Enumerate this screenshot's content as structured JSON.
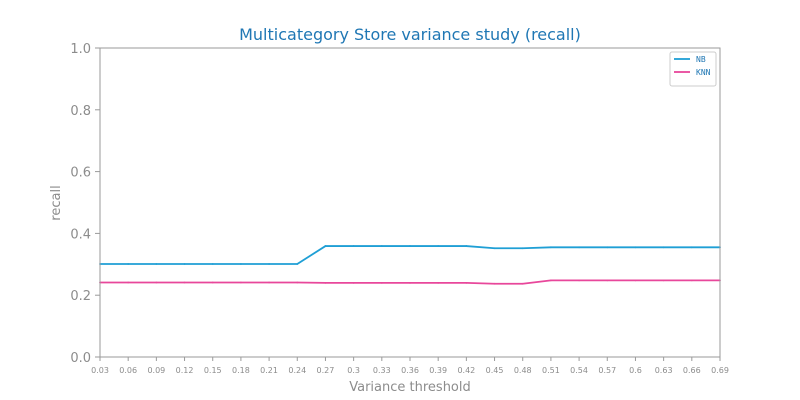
{
  "chart_data": {
    "type": "line",
    "title": "Multicategory Store variance study (recall)",
    "xlabel": "Variance threshold",
    "ylabel": "recall",
    "ylim": [
      0,
      1
    ],
    "y_ticks": [
      "0.0",
      "0.2",
      "0.4",
      "0.6",
      "0.8",
      "1.0"
    ],
    "categories": [
      "0.03",
      "0.06",
      "0.09",
      "0.12",
      "0.15",
      "0.18",
      "0.21",
      "0.24",
      "0.27",
      "0.3",
      "0.33",
      "0.36",
      "0.39",
      "0.42",
      "0.45",
      "0.48",
      "0.51",
      "0.54",
      "0.57",
      "0.6",
      "0.63",
      "0.66",
      "0.69"
    ],
    "legend_position": "top-right",
    "grid": false,
    "series": [
      {
        "name": "NB",
        "color": "#1f9fd5",
        "values": [
          0.301,
          0.301,
          0.301,
          0.301,
          0.301,
          0.301,
          0.301,
          0.301,
          0.359,
          0.359,
          0.359,
          0.359,
          0.359,
          0.359,
          0.352,
          0.352,
          0.355,
          0.355,
          0.355,
          0.355,
          0.355,
          0.355,
          0.355
        ]
      },
      {
        "name": "KNN",
        "color": "#e8479b",
        "values": [
          0.241,
          0.241,
          0.241,
          0.241,
          0.241,
          0.241,
          0.241,
          0.241,
          0.24,
          0.24,
          0.24,
          0.24,
          0.24,
          0.24,
          0.237,
          0.237,
          0.248,
          0.248,
          0.248,
          0.248,
          0.248,
          0.248,
          0.248
        ]
      }
    ]
  }
}
